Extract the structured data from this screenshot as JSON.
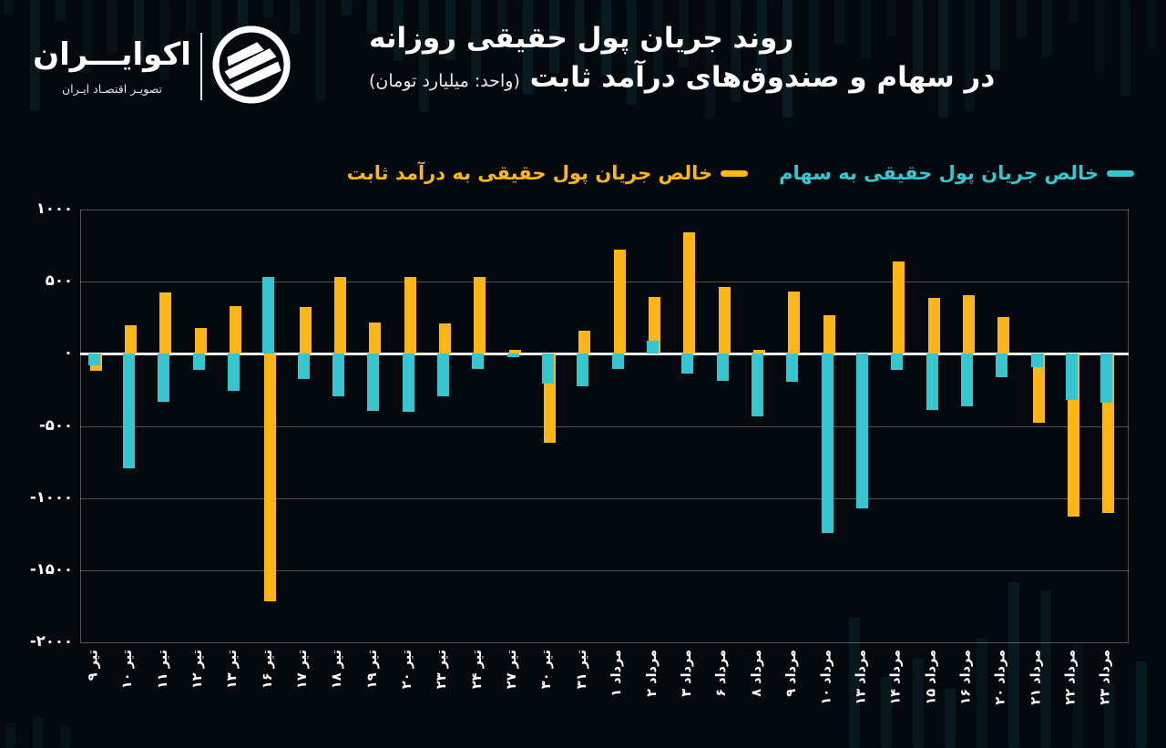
{
  "logo": {
    "wordmark": "اکوایـــران",
    "tagline": "تصویـر اقتصـاد ایـران"
  },
  "title": {
    "line1": "روند جریان پول حقیقی روزانه",
    "line2": "در سهام و صندوق‌های درآمد ثابت",
    "unit": "(واحد: میلیارد تومان)"
  },
  "legend": {
    "stocks_label": "خالص جریان پول حقیقی به سهام",
    "fixed_income_label": "خالص جریان پول حقیقی به درآمد ثابت"
  },
  "colors": {
    "stocks": "#36c6d0",
    "fixed_income": "#fcb615",
    "background": "#04090d",
    "zero_line": "#f4f4f4",
    "decor": "#14545f"
  },
  "chart_data": {
    "type": "bar",
    "title": "روند جریان پول حقیقی روزانه در سهام و صندوق‌های درآمد ثابت",
    "unit": "میلیارد تومان",
    "grid": true,
    "legend_position": "top",
    "ylim": [
      -2000,
      1000
    ],
    "ytick_values": [
      1000,
      500,
      0,
      -500,
      -1000,
      -1500,
      -2000
    ],
    "ytick_labels": [
      "۱۰۰۰",
      "۵۰۰",
      "۰",
      "-۵۰۰",
      "-۱۰۰۰",
      "-۱۵۰۰",
      "-۲۰۰۰"
    ],
    "categories": [
      "تیر ۹",
      "تیر ۱۰",
      "تیر ۱۱",
      "تیر ۱۲",
      "تیر ۱۳",
      "تیر ۱۶",
      "تیر ۱۷",
      "تیر ۱۸",
      "تیر ۱۹",
      "تیر ۲۰",
      "تیر ۲۳",
      "تیر ۲۴",
      "تیر ۲۷",
      "تیر ۳۰",
      "تیر ۳۱",
      "مرداد ۱",
      "مرداد ۲",
      "مرداد ۳",
      "مرداد ۶",
      "مرداد ۸",
      "مرداد ۹",
      "مرداد ۱۰",
      "مرداد ۱۳",
      "مرداد ۱۴",
      "مرداد ۱۵",
      "مرداد ۱۶",
      "مرداد ۲۰",
      "مرداد ۲۱",
      "مرداد ۲۲",
      "مرداد ۲۳"
    ],
    "series": [
      {
        "name": "خالص جریان پول حقیقی به سهام",
        "color": "#36c6d0",
        "values": [
          -80,
          -795,
          -330,
          -110,
          -255,
          535,
          -175,
          -295,
          -395,
          -405,
          -295,
          -105,
          -25,
          -205,
          -225,
          -105,
          90,
          -135,
          -185,
          -435,
          -195,
          -1240,
          -1070,
          -110,
          -390,
          -365,
          -160,
          -95,
          -320,
          -340
        ]
      },
      {
        "name": "خالص جریان پول حقیقی به درآمد ثابت",
        "color": "#fcb615",
        "values": [
          -115,
          195,
          425,
          180,
          330,
          -1715,
          325,
          530,
          215,
          530,
          210,
          530,
          25,
          -620,
          160,
          725,
          395,
          845,
          465,
          30,
          430,
          270,
          0,
          640,
          390,
          405,
          255,
          -480,
          -1130,
          -1105
        ]
      }
    ]
  }
}
